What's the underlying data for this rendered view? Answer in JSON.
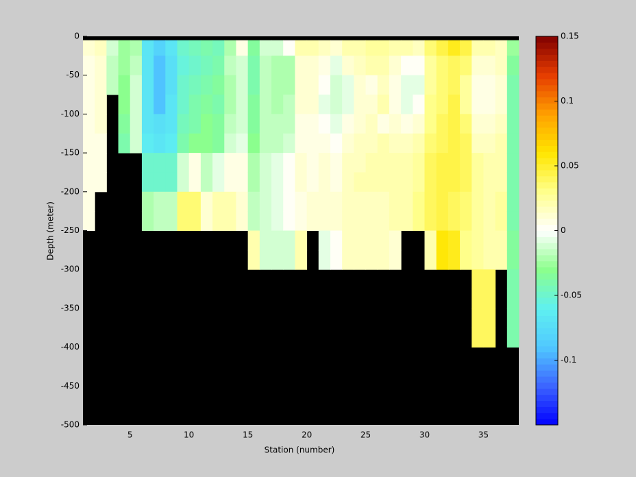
{
  "chart_data": {
    "type": "heatmap",
    "xlabel": "Station (number)",
    "ylabel": "Depth (meter)",
    "x": [
      1,
      2,
      3,
      4,
      5,
      6,
      7,
      8,
      9,
      10,
      11,
      12,
      13,
      14,
      15,
      16,
      17,
      18,
      19,
      20,
      21,
      22,
      23,
      24,
      25,
      26,
      27,
      28,
      29,
      30,
      31,
      32,
      33,
      34,
      35,
      36,
      37,
      38
    ],
    "y": [
      0,
      -5,
      -25,
      -50,
      -75,
      -100,
      -125,
      -150,
      -175,
      -200,
      -225,
      -250,
      -275,
      -300,
      -325,
      -350,
      -375,
      -400,
      -425,
      -450,
      -475,
      -500
    ],
    "values": [
      [
        null,
        0.01,
        0.005,
        0.005,
        0.005,
        0.005,
        0.005,
        0.005,
        0.005,
        0.005,
        0.005,
        null,
        null,
        null,
        null,
        null,
        null,
        null,
        null,
        null,
        null
      ],
      [
        null,
        0.015,
        0.01,
        0.01,
        0.01,
        0.01,
        0.005,
        0.005,
        0.005,
        null,
        null,
        null,
        null,
        null,
        null,
        null,
        null,
        null,
        null,
        null,
        null
      ],
      [
        null,
        -0.01,
        -0.015,
        -0.015,
        null,
        null,
        null,
        null,
        null,
        null,
        null,
        null,
        null,
        null,
        null,
        null,
        null,
        null,
        null,
        null,
        null
      ],
      [
        null,
        -0.025,
        -0.025,
        -0.03,
        -0.03,
        -0.035,
        -0.04,
        null,
        null,
        null,
        null,
        null,
        null,
        null,
        null,
        null,
        null,
        null,
        null,
        null,
        null
      ],
      [
        null,
        -0.02,
        -0.015,
        -0.01,
        -0.01,
        -0.01,
        -0.01,
        null,
        null,
        null,
        null,
        null,
        null,
        null,
        null,
        null,
        null,
        null,
        null,
        null,
        null
      ],
      [
        null,
        -0.07,
        -0.07,
        -0.07,
        -0.07,
        -0.07,
        -0.065,
        -0.05,
        -0.05,
        -0.02,
        -0.02,
        null,
        null,
        null,
        null,
        null,
        null,
        null,
        null,
        null,
        null
      ],
      [
        null,
        -0.08,
        -0.09,
        -0.09,
        -0.09,
        -0.075,
        -0.07,
        -0.05,
        -0.05,
        -0.015,
        -0.015,
        null,
        null,
        null,
        null,
        null,
        null,
        null,
        null,
        null,
        null
      ],
      [
        null,
        -0.07,
        -0.075,
        -0.075,
        -0.07,
        -0.07,
        -0.065,
        -0.05,
        -0.05,
        -0.015,
        -0.015,
        null,
        null,
        null,
        null,
        null,
        null,
        null,
        null,
        null,
        null
      ],
      [
        null,
        -0.05,
        -0.055,
        -0.05,
        -0.05,
        -0.045,
        -0.04,
        -0.01,
        -0.01,
        0.035,
        0.035,
        null,
        null,
        null,
        null,
        null,
        null,
        null,
        null,
        null,
        null
      ],
      [
        null,
        -0.045,
        -0.05,
        -0.045,
        -0.04,
        -0.04,
        -0.03,
        0.005,
        0.005,
        0.035,
        0.035,
        null,
        null,
        null,
        null,
        null,
        null,
        null,
        null,
        null,
        null
      ],
      [
        null,
        -0.04,
        -0.045,
        -0.04,
        -0.035,
        -0.03,
        -0.03,
        -0.015,
        -0.015,
        0.01,
        0.01,
        null,
        null,
        null,
        null,
        null,
        null,
        null,
        null,
        null,
        null
      ],
      [
        null,
        -0.045,
        -0.04,
        -0.035,
        -0.04,
        -0.035,
        -0.035,
        -0.005,
        -0.005,
        0.02,
        0.02,
        null,
        null,
        null,
        null,
        null,
        null,
        null,
        null,
        null,
        null
      ],
      [
        null,
        -0.02,
        -0.015,
        -0.02,
        -0.02,
        -0.015,
        -0.01,
        0.005,
        0.005,
        0.02,
        0.02,
        null,
        null,
        null,
        null,
        null,
        null,
        null,
        null,
        null,
        null
      ],
      [
        null,
        0.005,
        -0.01,
        -0.01,
        -0.01,
        -0.01,
        -0.005,
        0.005,
        0.005,
        0.01,
        0.01,
        null,
        null,
        null,
        null,
        null,
        null,
        null,
        null,
        null,
        null
      ],
      [
        null,
        -0.035,
        -0.04,
        -0.04,
        -0.035,
        -0.035,
        -0.03,
        -0.02,
        -0.02,
        -0.015,
        -0.015,
        0.02,
        0.02,
        null,
        null,
        null,
        null,
        null,
        null,
        null,
        null
      ],
      [
        null,
        -0.01,
        -0.015,
        -0.015,
        -0.015,
        -0.015,
        -0.015,
        -0.01,
        -0.01,
        -0.01,
        -0.01,
        -0.01,
        -0.01,
        null,
        null,
        null,
        null,
        null,
        null,
        null,
        null
      ],
      [
        null,
        -0.01,
        -0.02,
        -0.02,
        -0.02,
        -0.015,
        -0.015,
        -0.005,
        -0.005,
        -0.005,
        -0.005,
        -0.01,
        -0.01,
        null,
        null,
        null,
        null,
        null,
        null,
        null,
        null
      ],
      [
        null,
        0,
        -0.02,
        -0.02,
        -0.015,
        -0.015,
        -0.01,
        0,
        0,
        0,
        0,
        -0.01,
        -0.01,
        null,
        null,
        null,
        null,
        null,
        null,
        null,
        null
      ],
      [
        null,
        0.02,
        0.01,
        0.01,
        0.01,
        0.005,
        0.005,
        0.01,
        0.01,
        0.005,
        0.005,
        0.02,
        0.02,
        null,
        null,
        null,
        null,
        null,
        null,
        null,
        null
      ],
      [
        null,
        0.02,
        0.01,
        0.01,
        0.01,
        0.005,
        0.005,
        0.005,
        0.005,
        0.01,
        0.01,
        null,
        null,
        null,
        null,
        null,
        null,
        null,
        null,
        null,
        null
      ],
      [
        null,
        0.015,
        0.005,
        0,
        -0.005,
        0,
        0.005,
        0.01,
        0.01,
        0.01,
        0.01,
        -0.005,
        -0.005,
        null,
        null,
        null,
        null,
        null,
        null,
        null,
        null
      ],
      [
        null,
        0.01,
        -0.005,
        -0.01,
        -0.01,
        -0.005,
        0,
        0.005,
        0.005,
        0.01,
        0.01,
        0,
        0,
        null,
        null,
        null,
        null,
        null,
        null,
        null,
        null
      ],
      [
        null,
        0.02,
        0.01,
        -0.005,
        -0.005,
        0.005,
        0.01,
        0.015,
        0.015,
        0.015,
        0.015,
        0.015,
        0.015,
        null,
        null,
        null,
        null,
        null,
        null,
        null,
        null
      ],
      [
        null,
        0.02,
        0.015,
        0.01,
        0.01,
        0.01,
        0.015,
        0.015,
        0.02,
        0.015,
        0.015,
        0.015,
        0.015,
        null,
        null,
        null,
        null,
        null,
        null,
        null,
        null
      ],
      [
        null,
        0.025,
        0.02,
        0.005,
        0.01,
        0.015,
        0.015,
        0.02,
        0.02,
        0.015,
        0.015,
        0.015,
        0.015,
        null,
        null,
        null,
        null,
        null,
        null,
        null,
        null
      ],
      [
        null,
        0.025,
        0.02,
        0.015,
        0.02,
        0.005,
        0.02,
        0.02,
        0.02,
        0.015,
        0.015,
        0.015,
        0.015,
        null,
        null,
        null,
        null,
        null,
        null,
        null,
        null
      ],
      [
        null,
        0.02,
        0.01,
        0.005,
        0.005,
        0.01,
        0.015,
        0.02,
        0.02,
        0.02,
        0.02,
        0.01,
        0.01,
        null,
        null,
        null,
        null,
        null,
        null,
        null,
        null
      ],
      [
        null,
        0.02,
        0,
        -0.005,
        -0.005,
        0.005,
        0.015,
        0.02,
        0.02,
        0.02,
        0.02,
        null,
        null,
        null,
        null,
        null,
        null,
        null,
        null,
        null,
        null
      ],
      [
        null,
        0.015,
        0,
        -0.005,
        0,
        0.01,
        0.02,
        0.025,
        0.025,
        0.03,
        0.03,
        null,
        null,
        null,
        null,
        null,
        null,
        null,
        null,
        null,
        null
      ],
      [
        null,
        0.035,
        0.025,
        0.025,
        0.03,
        0.03,
        0.035,
        0.04,
        0.04,
        0.04,
        0.04,
        0.02,
        0.02,
        null,
        null,
        null,
        null,
        null,
        null,
        null,
        null
      ],
      [
        null,
        0.045,
        0.035,
        0.035,
        0.035,
        0.04,
        0.04,
        0.045,
        0.045,
        0.045,
        0.045,
        0.06,
        0.06,
        null,
        null,
        null,
        null,
        null,
        null,
        null,
        null
      ],
      [
        null,
        0.055,
        0.04,
        0.04,
        0.045,
        0.045,
        0.045,
        0.045,
        0.045,
        0.04,
        0.04,
        0.055,
        0.055,
        null,
        null,
        null,
        null,
        null,
        null,
        null,
        null
      ],
      [
        null,
        0.045,
        0.035,
        0.025,
        0.025,
        0.035,
        0.04,
        0.04,
        0.04,
        0.035,
        0.035,
        0.03,
        0.03,
        null,
        null,
        null,
        null,
        null,
        null,
        null,
        null
      ],
      [
        null,
        0.02,
        0.01,
        0.005,
        0.005,
        0.01,
        0.015,
        0.025,
        0.025,
        0.025,
        0.025,
        0.025,
        0.025,
        0.04,
        0.04,
        0.04,
        0.04,
        null,
        null,
        null,
        null
      ],
      [
        null,
        0.02,
        0.01,
        0.005,
        0.005,
        0.01,
        0.015,
        0.02,
        0.02,
        0.02,
        0.02,
        0.02,
        0.02,
        0.04,
        0.04,
        0.04,
        0.04,
        null,
        null,
        null,
        null
      ],
      [
        null,
        0.015,
        0.015,
        0.01,
        0.01,
        0.015,
        0.02,
        0.02,
        0.02,
        0.025,
        0.025,
        0.02,
        0.02,
        null,
        null,
        null,
        null,
        null,
        null,
        null,
        null
      ],
      [
        null,
        -0.025,
        -0.035,
        -0.04,
        -0.04,
        -0.04,
        -0.04,
        -0.04,
        -0.04,
        -0.04,
        -0.04,
        -0.035,
        -0.035,
        -0.04,
        -0.04,
        -0.04,
        -0.04,
        null,
        null,
        null,
        null
      ]
    ],
    "xlim": [
      1,
      38
    ],
    "ylim": [
      -500,
      0
    ],
    "xticks": [
      5,
      10,
      15,
      20,
      25,
      30,
      35
    ],
    "yticks": [
      0,
      -50,
      -100,
      -150,
      -200,
      -250,
      -300,
      -350,
      -400,
      -450,
      -500
    ],
    "clim": [
      -0.15,
      0.15
    ],
    "cticks": [
      0.15,
      0.1,
      0.05,
      0,
      -0.05,
      -0.1
    ],
    "missing_color": "#000000",
    "colormap": [
      "#0000ff",
      "#3c64ff",
      "#50c8ff",
      "#5ff0f0",
      "#8cff8c",
      "#ffffff",
      "#ffff8c",
      "#ffe600",
      "#ffa000",
      "#e63c00",
      "#800000"
    ]
  }
}
